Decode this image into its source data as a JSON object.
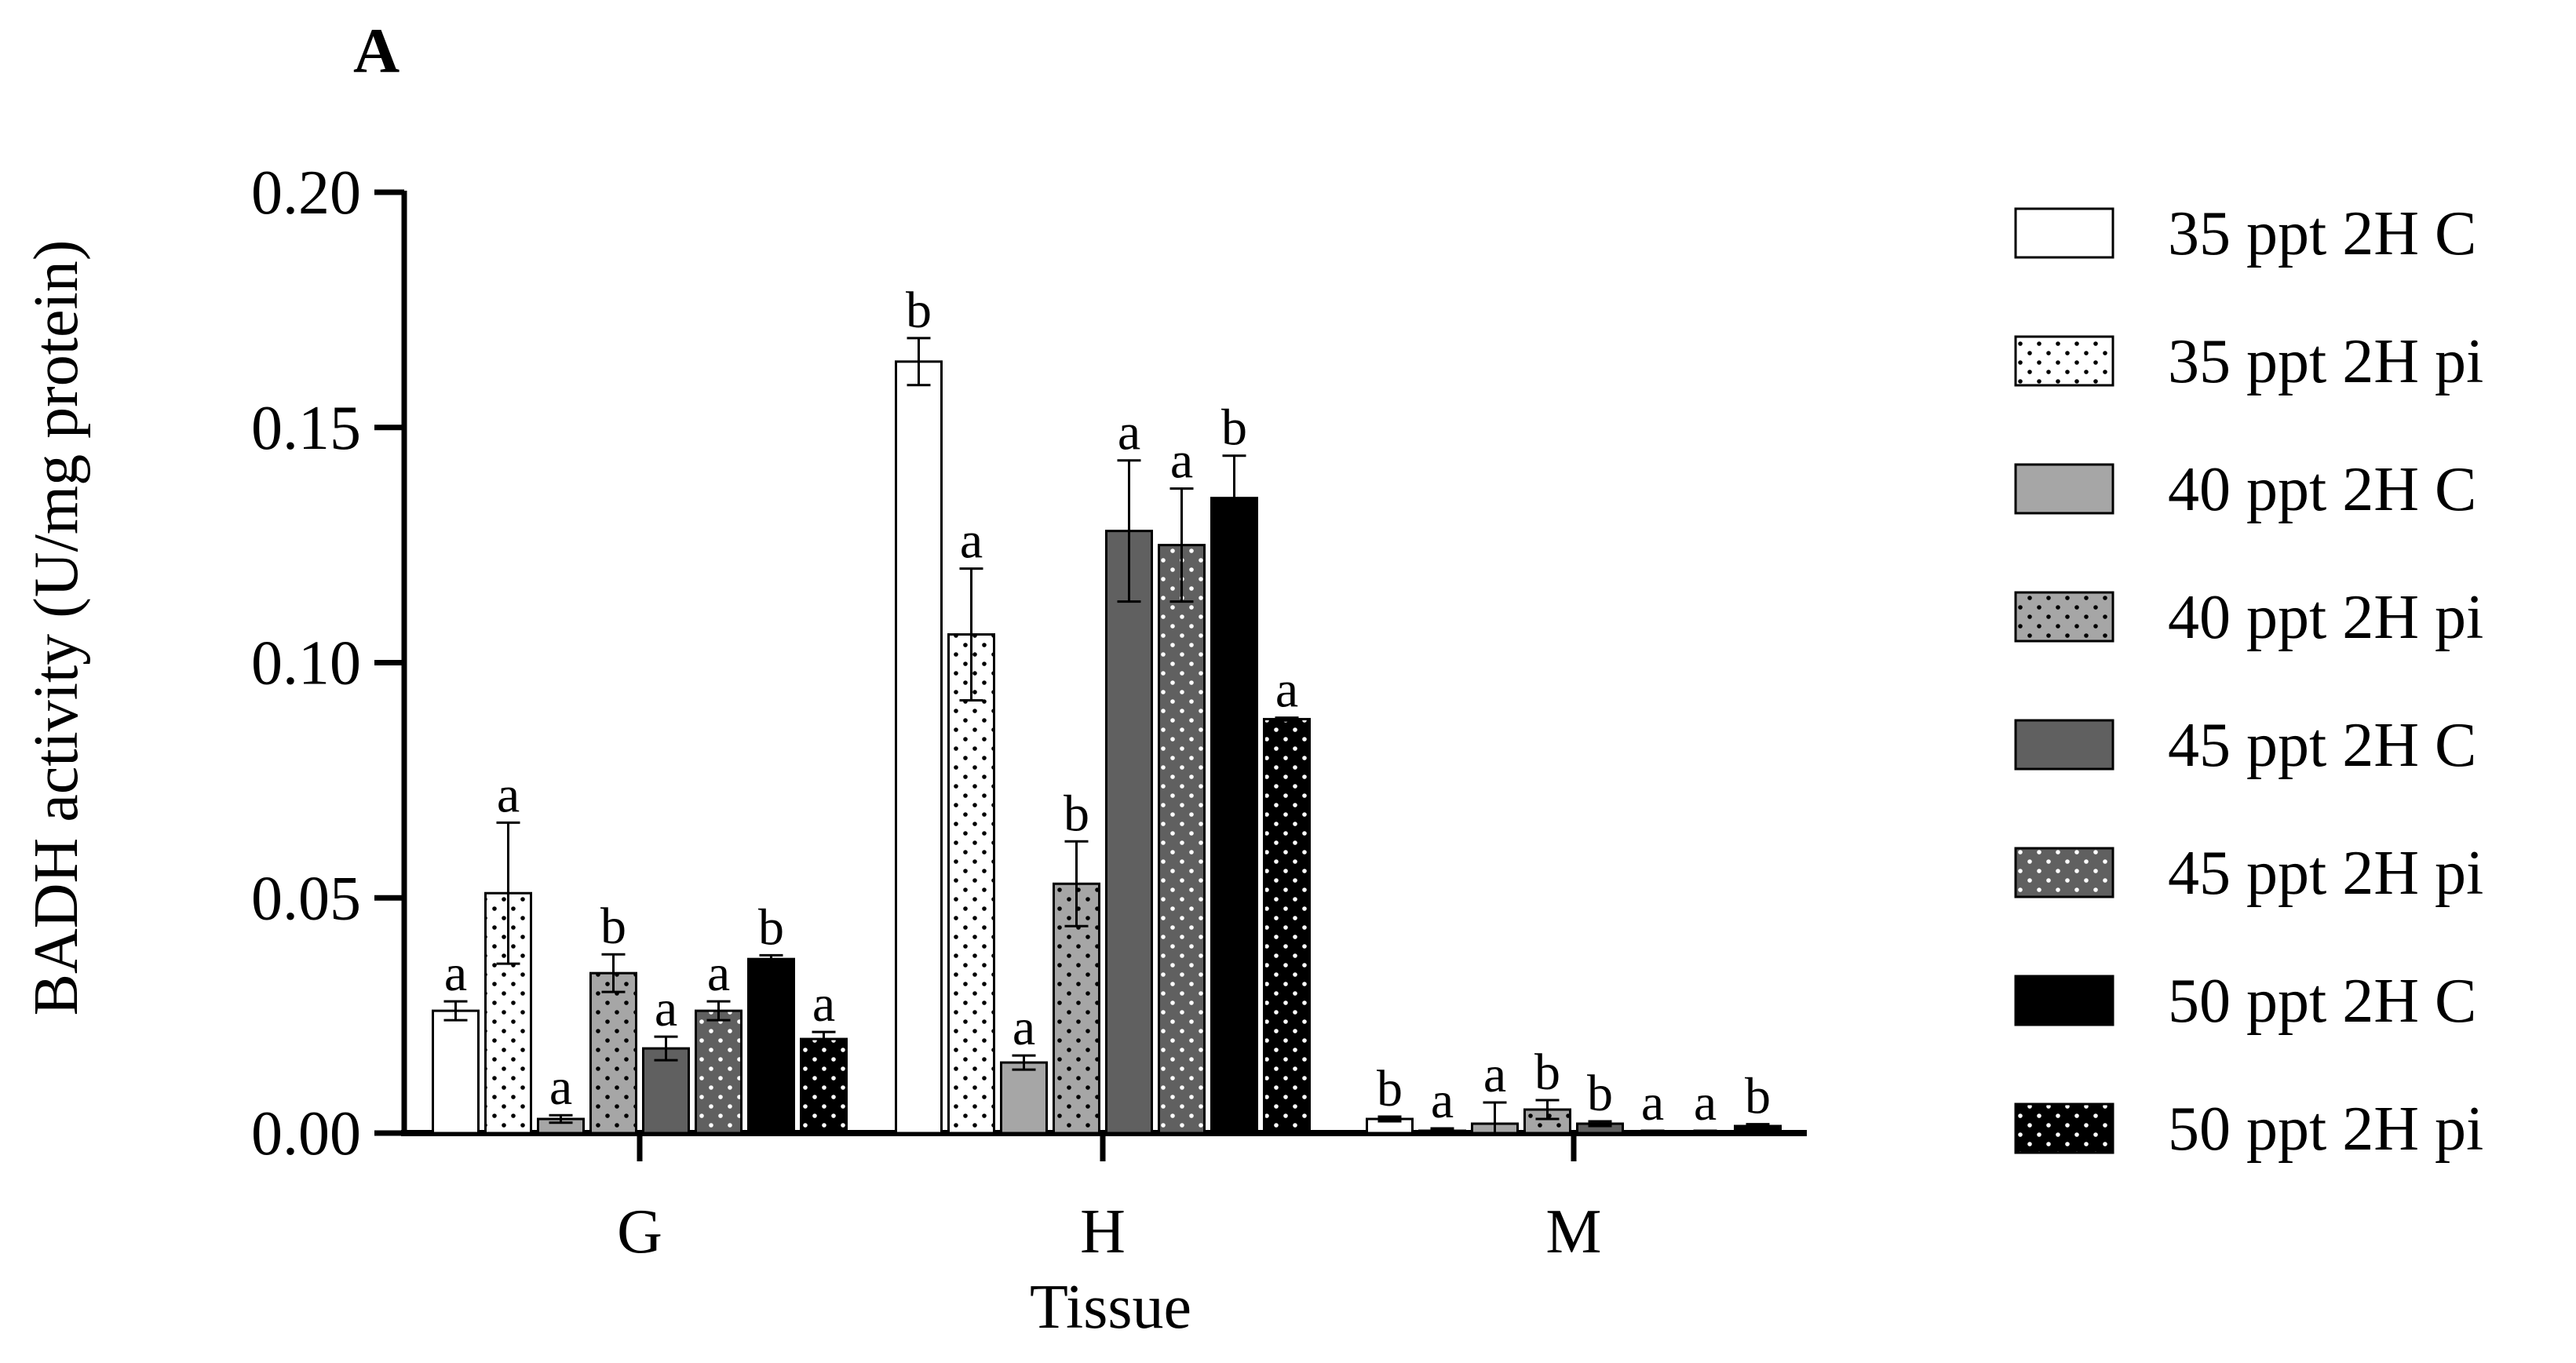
{
  "panel_label": "A",
  "chart_data": {
    "type": "bar",
    "xlabel": "Tissue",
    "ylabel": "BADH activity (U/mg protein)",
    "ylim": [
      0,
      0.2
    ],
    "yticks": [
      "0.00",
      "0.05",
      "0.10",
      "0.15",
      "0.20"
    ],
    "categories": [
      "G",
      "H",
      "M"
    ],
    "grid": false,
    "legend_position": "right",
    "series": [
      {
        "name": "35 ppt 2H C",
        "fill": "#ffffff",
        "dotted": false,
        "values": [
          0.026,
          0.164,
          0.003
        ],
        "errors": [
          0.002,
          0.005,
          0.0005
        ],
        "letters": [
          "a",
          "b",
          "b"
        ]
      },
      {
        "name": "35 ppt 2H pi",
        "fill": "#ffffff",
        "dotted": true,
        "dot": "#000000",
        "values": [
          0.051,
          0.106,
          0.0005
        ],
        "errors": [
          0.015,
          0.014,
          0.0005
        ],
        "letters": [
          "a",
          "a",
          "a"
        ]
      },
      {
        "name": "40 ppt 2H C",
        "fill": "#a6a6a6",
        "dotted": false,
        "values": [
          0.003,
          0.015,
          0.002
        ],
        "errors": [
          0.0008,
          0.0015,
          0.0045
        ],
        "letters": [
          "a",
          "a",
          "a"
        ]
      },
      {
        "name": "40 ppt 2H pi",
        "fill": "#a6a6a6",
        "dotted": true,
        "dot": "#000000",
        "values": [
          0.034,
          0.053,
          0.005
        ],
        "errors": [
          0.004,
          0.009,
          0.002
        ],
        "letters": [
          "b",
          "b",
          "b"
        ]
      },
      {
        "name": "45 ppt 2H C",
        "fill": "#606060",
        "dotted": false,
        "values": [
          0.018,
          0.128,
          0.002
        ],
        "errors": [
          0.0025,
          0.015,
          0.0005
        ],
        "letters": [
          "a",
          "a",
          "b"
        ]
      },
      {
        "name": "45 ppt 2H pi",
        "fill": "#606060",
        "dotted": true,
        "dot": "#ffffff",
        "values": [
          0.026,
          0.125,
          0.0003
        ],
        "errors": [
          0.002,
          0.012,
          0.0002
        ],
        "letters": [
          "a",
          "a",
          "a"
        ]
      },
      {
        "name": "50 ppt 2H C",
        "fill": "#000000",
        "dotted": false,
        "values": [
          0.037,
          0.135,
          0.0003
        ],
        "errors": [
          0.0008,
          0.009,
          0.0002
        ],
        "letters": [
          "b",
          "b",
          "a"
        ]
      },
      {
        "name": "50 ppt 2H pi",
        "fill": "#000000",
        "dotted": true,
        "dot": "#ffffff",
        "values": [
          0.02,
          0.088,
          0.0015
        ],
        "errors": [
          0.0015,
          0.0003,
          0.0004
        ],
        "letters": [
          "a",
          "a",
          "b"
        ]
      }
    ]
  }
}
